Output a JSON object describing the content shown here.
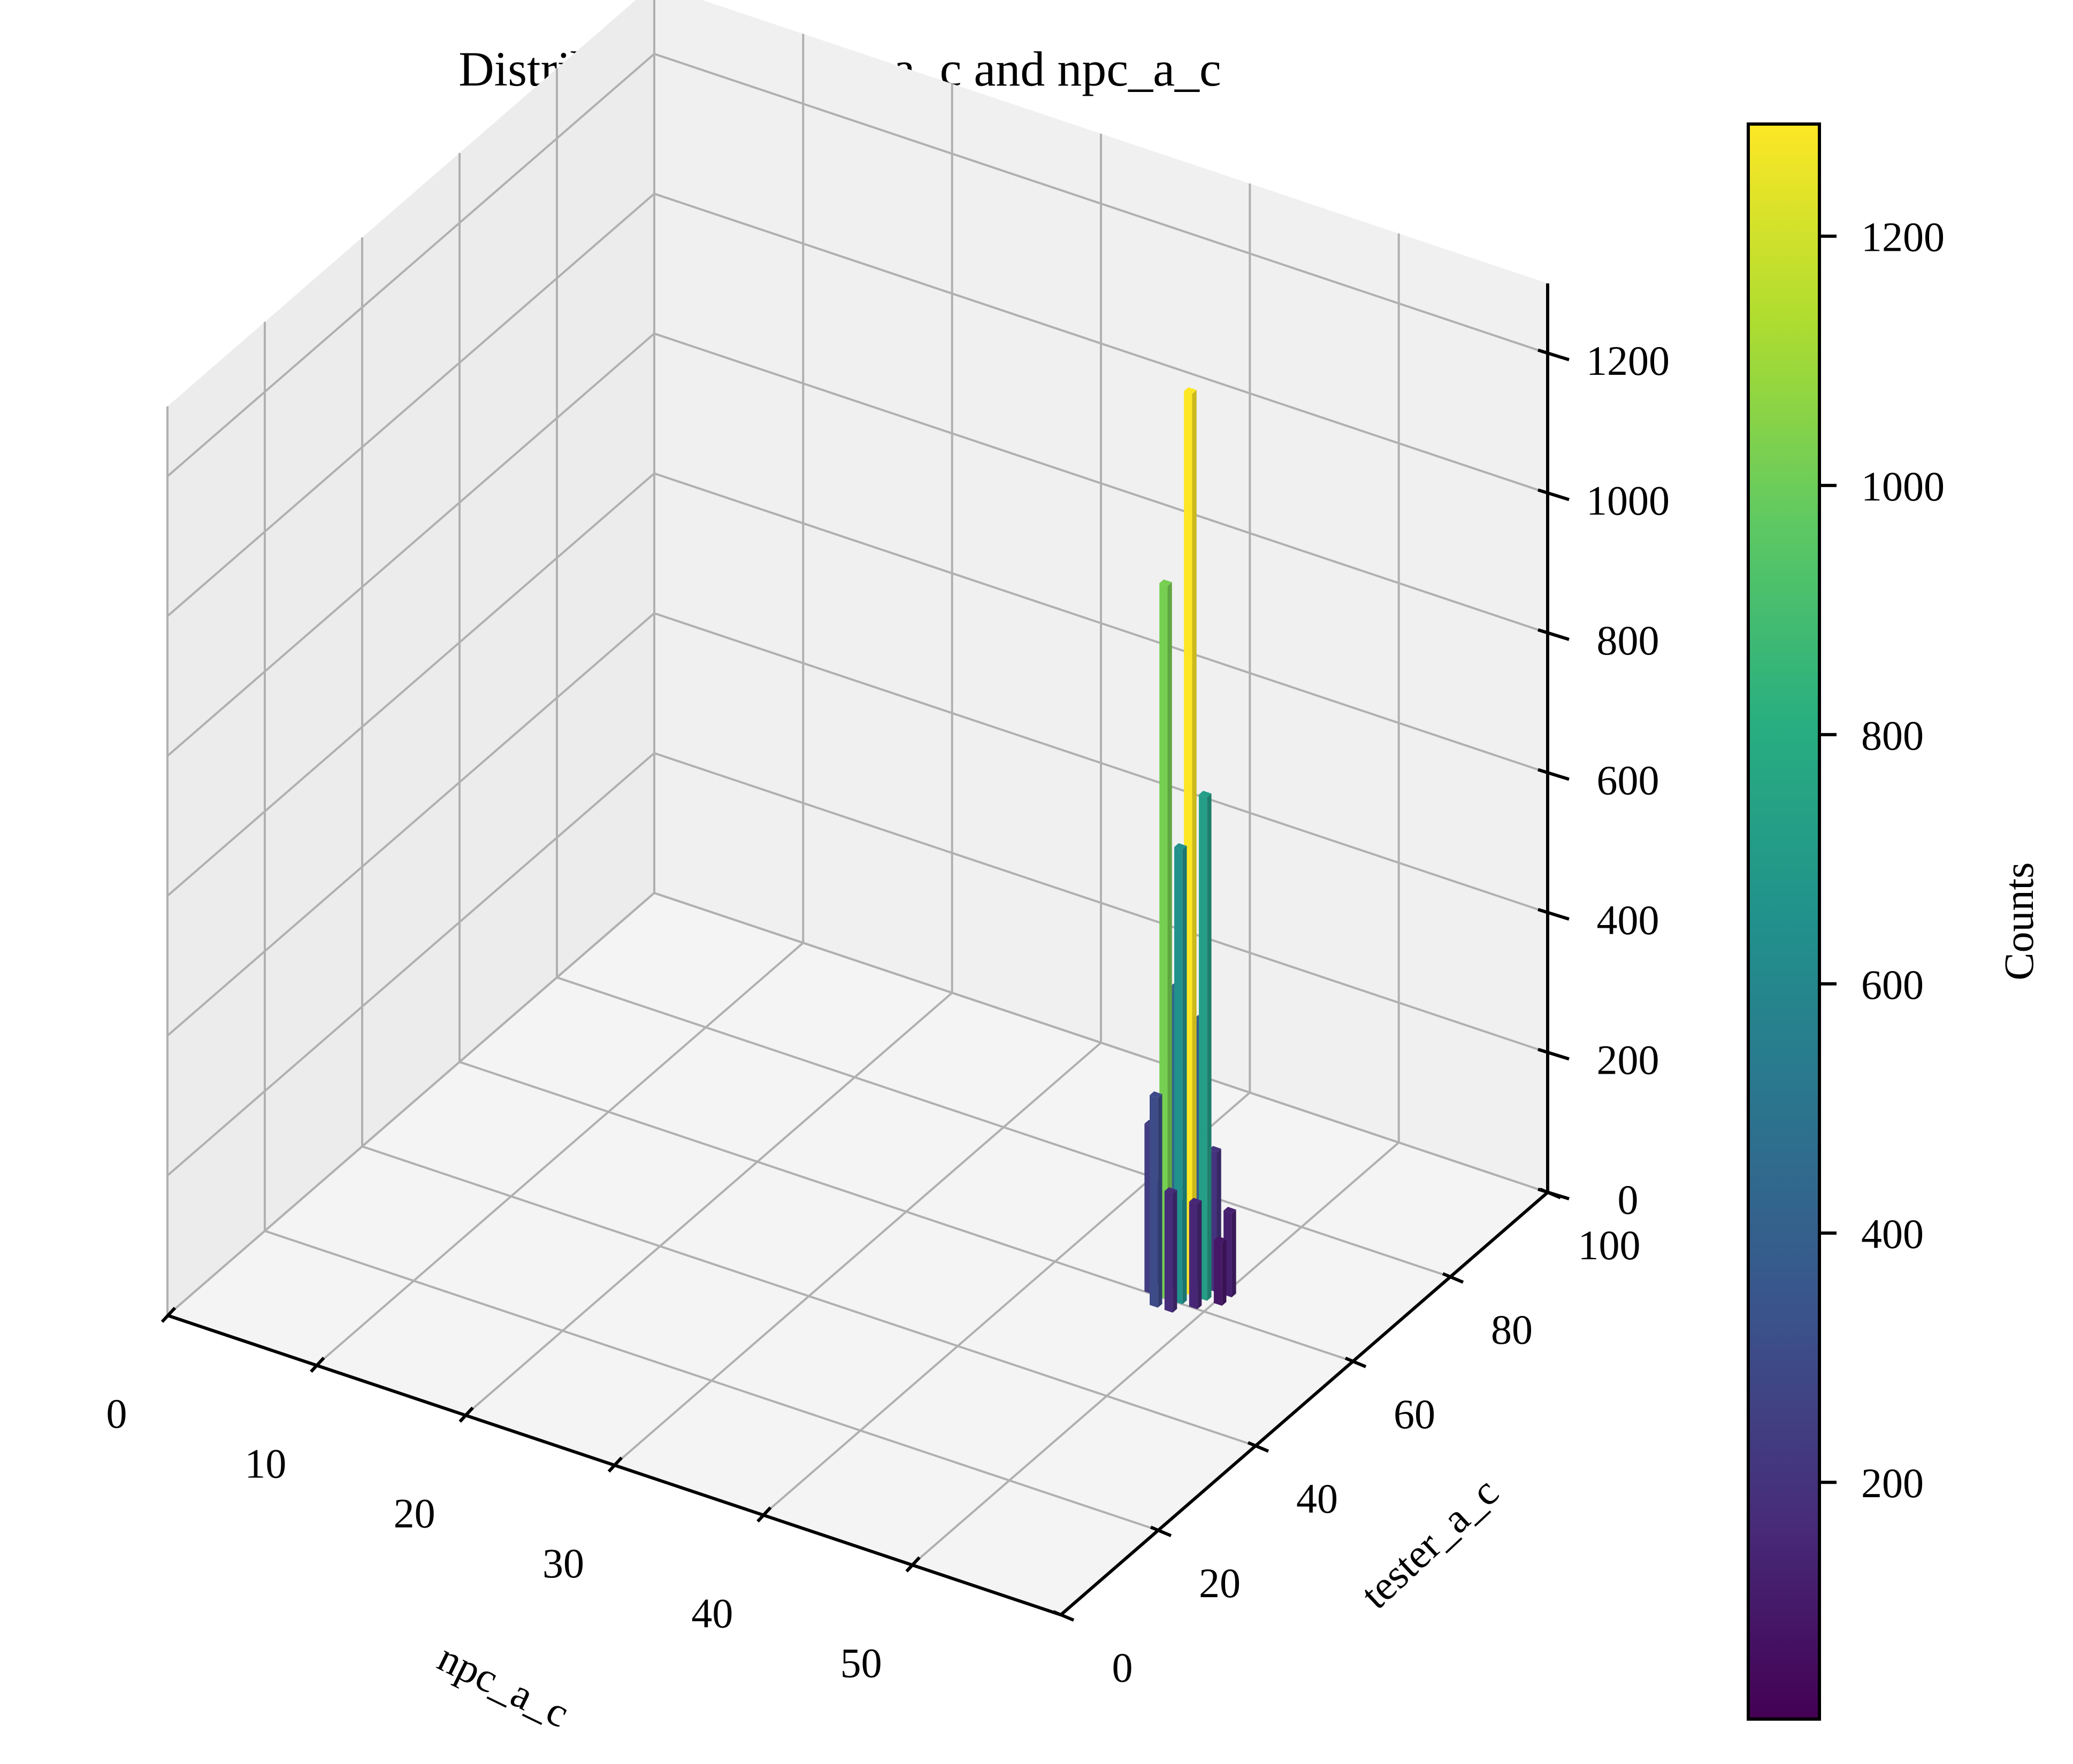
{
  "chart_data": {
    "type": "bar3d",
    "title": "Distribution of tester_a_c and npc_a_c",
    "xlabel": "npc_a_c",
    "ylabel": "tester_a_c",
    "zlabel": "",
    "xlim": [
      0,
      60
    ],
    "ylim": [
      0,
      100
    ],
    "zlim": [
      0,
      1300
    ],
    "x_ticks": [
      "0",
      "10",
      "20",
      "30",
      "40",
      "50"
    ],
    "y_ticks": [
      "0",
      "20",
      "40",
      "60",
      "80",
      "100"
    ],
    "z_ticks": [
      "0",
      "200",
      "400",
      "600",
      "800",
      "1000",
      "1200"
    ],
    "colorbar": {
      "label": "Counts",
      "range": [
        10,
        1290
      ],
      "ticks": [
        "200",
        "400",
        "600",
        "800",
        "1000",
        "1200"
      ],
      "colormap": "viridis"
    },
    "grid": true,
    "peaks": [
      {
        "npc_a_c": 48,
        "tester_a_c": 62,
        "count": 1290
      },
      {
        "npc_a_c": 47,
        "tester_a_c": 60,
        "count": 1020
      },
      {
        "npc_a_c": 49,
        "tester_a_c": 62,
        "count": 720
      },
      {
        "npc_a_c": 48,
        "tester_a_c": 60,
        "count": 650
      },
      {
        "npc_a_c": 47,
        "tester_a_c": 62,
        "count": 430
      },
      {
        "npc_a_c": 48,
        "tester_a_c": 64,
        "count": 380
      },
      {
        "npc_a_c": 47,
        "tester_a_c": 58,
        "count": 300
      },
      {
        "npc_a_c": 46,
        "tester_a_c": 60,
        "count": 240
      },
      {
        "npc_a_c": 49,
        "tester_a_c": 64,
        "count": 200
      },
      {
        "npc_a_c": 48,
        "tester_a_c": 58,
        "count": 170
      },
      {
        "npc_a_c": 49,
        "tester_a_c": 60,
        "count": 150
      },
      {
        "npc_a_c": 46,
        "tester_a_c": 62,
        "count": 140
      },
      {
        "npc_a_c": 50,
        "tester_a_c": 64,
        "count": 120
      },
      {
        "npc_a_c": 47,
        "tester_a_c": 64,
        "count": 110
      },
      {
        "npc_a_c": 50,
        "tester_a_c": 62,
        "count": 90
      }
    ]
  }
}
